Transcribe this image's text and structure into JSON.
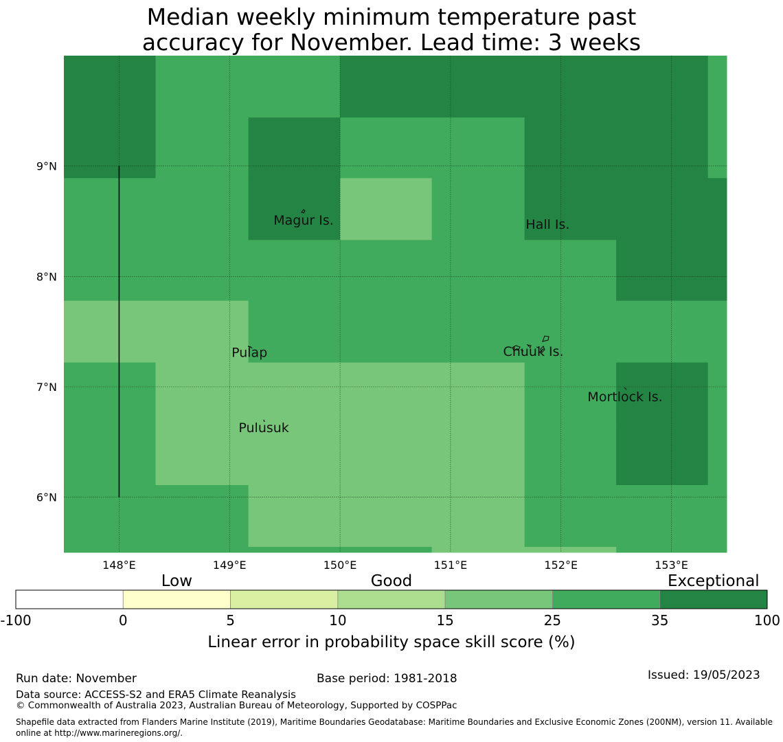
{
  "title_line1": "Median weekly minimum temperature past",
  "title_line2": "accuracy for November. Lead time: 3 weeks",
  "map": {
    "lon_range": [
      147.5,
      153.5
    ],
    "lat_range": [
      5.5,
      10.0
    ],
    "x_ticks": [
      {
        "value": 148,
        "label": "148°E"
      },
      {
        "value": 149,
        "label": "149°E"
      },
      {
        "value": 150,
        "label": "150°E"
      },
      {
        "value": 151,
        "label": "151°E"
      },
      {
        "value": 152,
        "label": "152°E"
      },
      {
        "value": 153,
        "label": "153°E"
      }
    ],
    "y_ticks": [
      {
        "value": 6,
        "label": "6°N"
      },
      {
        "value": 7,
        "label": "7°N"
      },
      {
        "value": 8,
        "label": "8°N"
      },
      {
        "value": 9,
        "label": "9°N"
      }
    ],
    "lon_edges": [
      147.5,
      148.33,
      149.17,
      150.0,
      150.83,
      151.67,
      152.5,
      153.33,
      153.5
    ],
    "lat_edges": [
      10.0,
      9.44,
      8.89,
      8.33,
      7.78,
      7.22,
      6.67,
      6.11,
      5.55,
      5.5
    ],
    "grid_bins": [
      [
        6,
        5,
        5,
        6,
        6,
        6,
        6,
        5
      ],
      [
        6,
        5,
        6,
        5,
        5,
        6,
        6,
        5
      ],
      [
        5,
        5,
        6,
        4,
        5,
        6,
        6,
        6
      ],
      [
        5,
        5,
        5,
        5,
        5,
        5,
        6,
        6
      ],
      [
        4,
        4,
        5,
        5,
        5,
        5,
        5,
        5
      ],
      [
        5,
        4,
        4,
        4,
        4,
        5,
        6,
        5
      ],
      [
        5,
        4,
        4,
        4,
        4,
        5,
        6,
        5
      ],
      [
        5,
        5,
        4,
        4,
        4,
        5,
        5,
        5
      ],
      [
        5,
        5,
        5,
        5,
        4,
        4,
        5,
        5
      ]
    ],
    "boundary_line": {
      "lon": 148.0,
      "lat_from": 6.0,
      "lat_to": 9.0
    },
    "islands": [
      {
        "name": "Magur Is.",
        "lon": 149.67,
        "lat": 8.57
      },
      {
        "name": "Hall Is.",
        "lon": 151.88,
        "lat": 8.53
      },
      {
        "name": "Pulap",
        "lon": 149.18,
        "lat": 7.37
      },
      {
        "name": "Chuuk Is.",
        "lon": 151.75,
        "lat": 7.38
      },
      {
        "name": "Mortlock Is.",
        "lon": 152.58,
        "lat": 6.97
      },
      {
        "name": "Pulusuk",
        "lon": 149.31,
        "lat": 6.69
      }
    ]
  },
  "legend": {
    "category_labels": [
      "Low",
      "Good",
      "Exceptional"
    ],
    "boundaries": [
      "-100",
      "0",
      "5",
      "10",
      "15",
      "25",
      "35",
      "100"
    ],
    "colors": [
      "#ffffff",
      "#ffffcc",
      "#d9f0a3",
      "#addd8e",
      "#78c679",
      "#41ab5d",
      "#238443"
    ],
    "axis_title": "Linear error in probability space skill score (%)"
  },
  "footer": {
    "run_date": "Run date: November",
    "base_period": "Base period: 1981-2018",
    "issued": "Issued: 19/05/2023",
    "data_source": "Data source: ACCESS-S2 and ERA5 Climate Reanalysis",
    "copyright": "© Commonwealth of Australia 2023, Australian Bureau of Meteorology, Supported by COSPPac",
    "shapefile": "Shapefile data extracted from Flanders Marine Institute (2019), Maritime Boundaries Geodatabase: Maritime Boundaries and Exclusive Economic Zones (200NM), version 11. Available online at http://www.marineregions.org/."
  }
}
